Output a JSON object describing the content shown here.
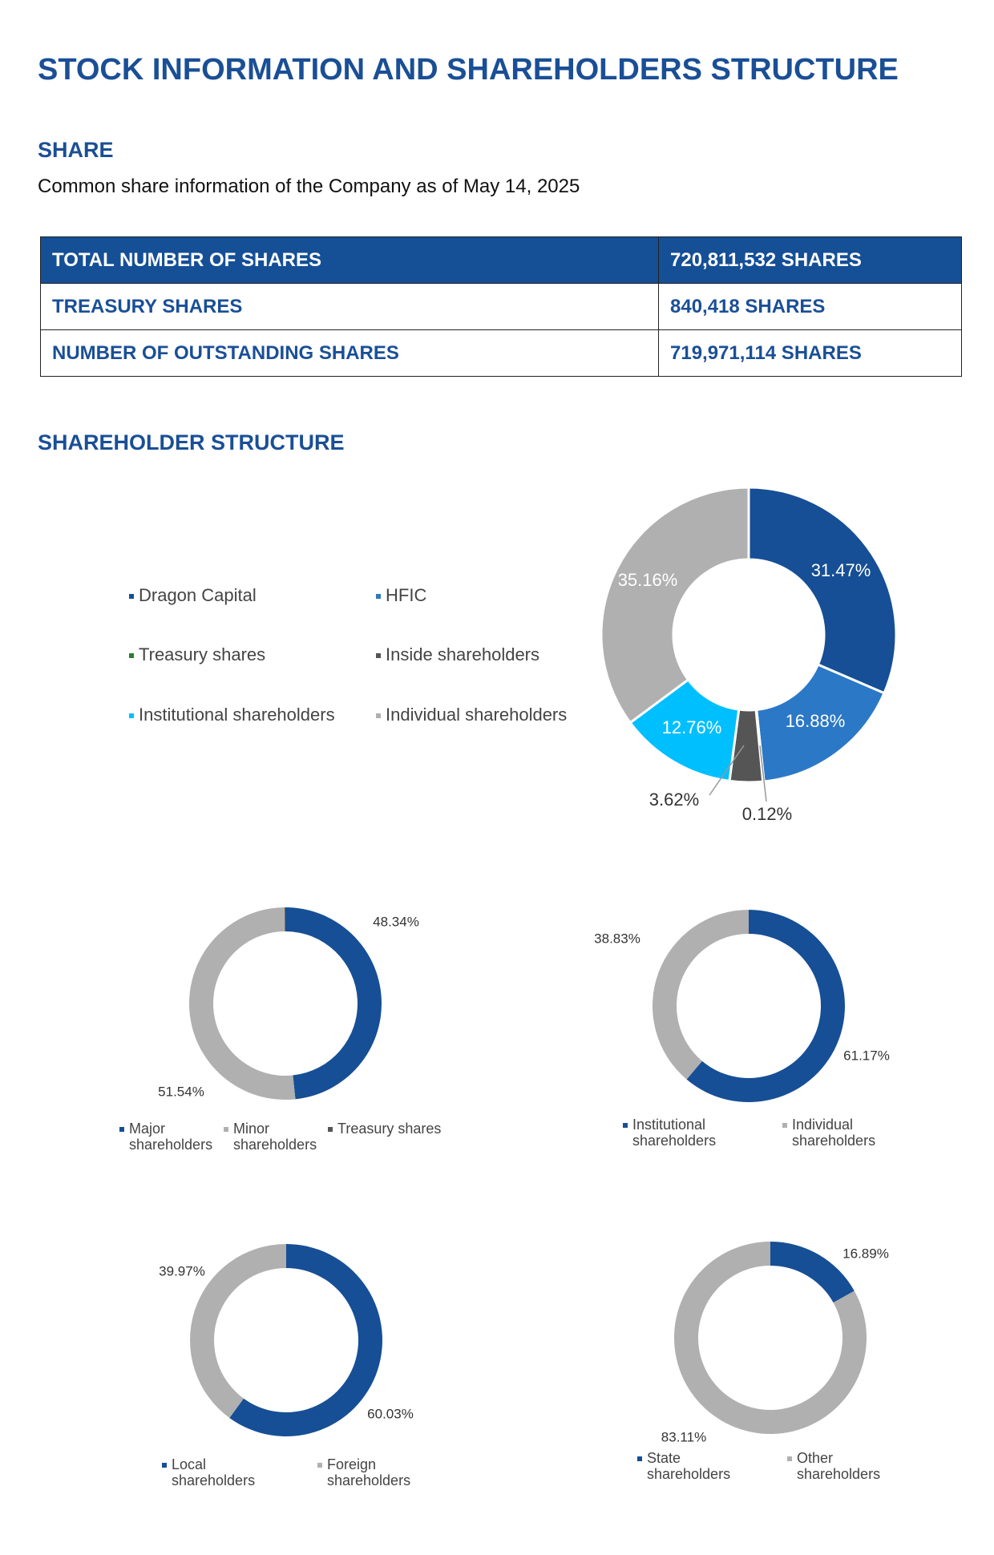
{
  "header": {
    "title": "STOCK INFORMATION AND SHAREHOLDERS STRUCTURE"
  },
  "share": {
    "heading": "SHARE",
    "note": "Common share information of the Company as of May 14, 2025"
  },
  "table": {
    "rows": [
      [
        "TOTAL NUMBER OF SHARES",
        "720,811,532 SHARES"
      ],
      [
        "TREASURY SHARES",
        "840,418 SHARES"
      ],
      [
        "NUMBER OF OUTSTANDING SHARES",
        "719,971,114 SHARES"
      ]
    ]
  },
  "structure": {
    "heading": "SHAREHOLDER STRUCTURE"
  },
  "chart_data": [
    {
      "type": "donut",
      "categories": [
        "Dragon Capital",
        "HFIC",
        "Treasury shares",
        "Inside shareholders",
        "Institutional shareholders",
        "Individual shareholders"
      ],
      "values": [
        31.47,
        16.88,
        0.12,
        3.62,
        12.76,
        35.16
      ],
      "value_labels": [
        "31.47%",
        "16.88%",
        "0.12%",
        "3.62%",
        "12.76%",
        "35.16%"
      ],
      "colors": [
        "#164f95",
        "#2b78c6",
        "#2e7d32",
        "#555555",
        "#00bfff",
        "#b0b0b0"
      ]
    },
    {
      "type": "donut",
      "categories": [
        "Major shareholders",
        "Minor shareholders",
        "Treasury shares"
      ],
      "values": [
        48.34,
        51.54,
        0.12
      ],
      "value_labels": [
        "48.34%",
        "51.54%",
        null
      ],
      "colors": [
        "#164f95",
        "#b0b0b0",
        "#555555"
      ]
    },
    {
      "type": "donut",
      "categories": [
        "Institutional shareholders",
        "Individual shareholders"
      ],
      "values": [
        61.17,
        38.83
      ],
      "value_labels": [
        "61.17%",
        "38.83%"
      ],
      "colors": [
        "#164f95",
        "#b0b0b0"
      ]
    },
    {
      "type": "donut",
      "categories": [
        "Local shareholders",
        "Foreign shareholders"
      ],
      "values": [
        60.03,
        39.97
      ],
      "value_labels": [
        "60.03%",
        "39.97%"
      ],
      "colors": [
        "#164f95",
        "#b0b0b0"
      ]
    },
    {
      "type": "donut",
      "categories": [
        "State shareholders",
        "Other shareholders"
      ],
      "values": [
        16.89,
        83.11
      ],
      "value_labels": [
        "16.89%",
        "83.11%"
      ],
      "colors": [
        "#164f95",
        "#b0b0b0"
      ]
    }
  ]
}
